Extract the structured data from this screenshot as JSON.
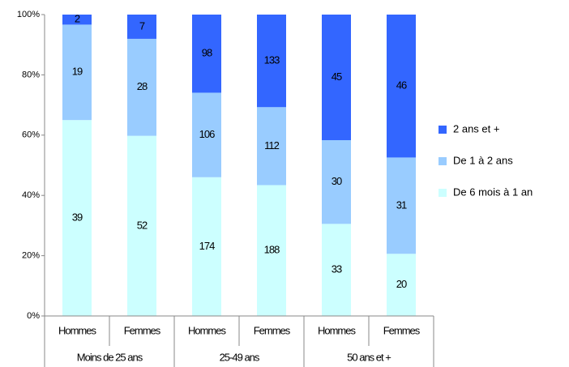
{
  "chart_data": {
    "type": "bar",
    "stack": "percent",
    "categories": [
      "Hommes",
      "Femmes",
      "Hommes",
      "Femmes",
      "Hommes",
      "Femmes"
    ],
    "groups": [
      "Moins de 25 ans",
      "25-49 ans",
      "50 ans et +"
    ],
    "series": [
      {
        "name": "De 6 mois à 1 an",
        "color": "#ccffff",
        "values": [
          39,
          52,
          174,
          188,
          33,
          20
        ]
      },
      {
        "name": "De 1 à 2 ans",
        "color": "#99ccff",
        "values": [
          19,
          28,
          106,
          112,
          30,
          31
        ]
      },
      {
        "name": "2 ans et +",
        "color": "#3366ff",
        "values": [
          2,
          7,
          98,
          133,
          45,
          46
        ]
      }
    ],
    "ylim": [
      0,
      100
    ],
    "yticks": [
      {
        "value": 0,
        "label": "0%"
      },
      {
        "value": 20,
        "label": "20%"
      },
      {
        "value": 40,
        "label": "40%"
      },
      {
        "value": 60,
        "label": "60%"
      },
      {
        "value": 80,
        "label": "80%"
      },
      {
        "value": 100,
        "label": "100%"
      }
    ],
    "legend": "right"
  }
}
